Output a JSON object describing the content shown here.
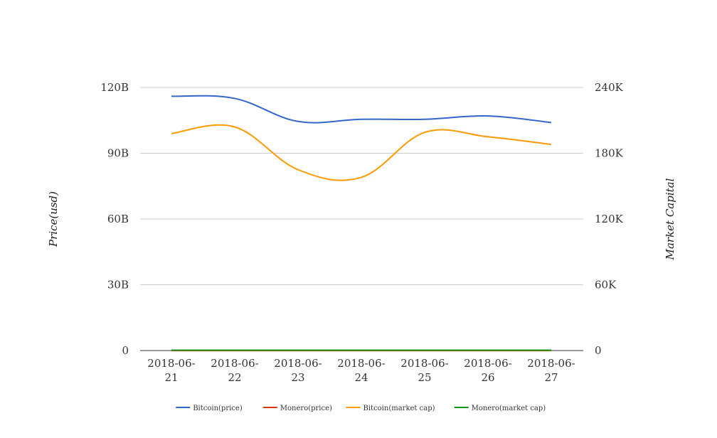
{
  "chart_data": {
    "type": "line",
    "title": "",
    "categories": [
      "2018-06-21",
      "2018-06-22",
      "2018-06-23",
      "2018-06-24",
      "2018-06-25",
      "2018-06-26",
      "2018-06-27"
    ],
    "x_tick_labels": [
      [
        "2018-06-",
        "21"
      ],
      [
        "2018-06-",
        "22"
      ],
      [
        "2018-06-",
        "23"
      ],
      [
        "2018-06-",
        "24"
      ],
      [
        "2018-06-",
        "25"
      ],
      [
        "2018-06-",
        "26"
      ],
      [
        "2018-06-",
        "27"
      ]
    ],
    "ylabel_left": "Price(usd)",
    "ylabel_right": "Market Capital",
    "ylim_left": [
      0,
      120000000000
    ],
    "ylim_right": [
      0,
      240000
    ],
    "left_ticks": [
      {
        "value": 0,
        "label": "0"
      },
      {
        "value": 30000000000,
        "label": "30B"
      },
      {
        "value": 60000000000,
        "label": "60B"
      },
      {
        "value": 90000000000,
        "label": "90B"
      },
      {
        "value": 120000000000,
        "label": "120B"
      }
    ],
    "right_ticks": [
      {
        "value": 0,
        "label": "0"
      },
      {
        "value": 60000,
        "label": "60K"
      },
      {
        "value": 120000,
        "label": "120K"
      },
      {
        "value": 180000,
        "label": "180K"
      },
      {
        "value": 240000,
        "label": "240K"
      }
    ],
    "grid": true,
    "legend_position": "bottom",
    "series": [
      {
        "name": "Bitcoin(price)",
        "axis": "left",
        "color": "#3366cc",
        "values": [
          116000000000,
          115000000000,
          104500000000,
          105500000000,
          105500000000,
          107000000000,
          104000000000
        ]
      },
      {
        "name": "Monero(price)",
        "axis": "left",
        "color": "#dc3912",
        "values": [
          0,
          0,
          0,
          0,
          0,
          0,
          0
        ]
      },
      {
        "name": "Bitcoin(market cap)",
        "axis": "left",
        "color": "#ff9900",
        "values": [
          99000000000,
          102000000000,
          82500000000,
          79000000000,
          99500000000,
          97500000000,
          94000000000
        ]
      },
      {
        "name": "Monero(market cap)",
        "axis": "right",
        "color": "#109618",
        "values": [
          300,
          300,
          300,
          300,
          300,
          300,
          300
        ]
      }
    ]
  }
}
